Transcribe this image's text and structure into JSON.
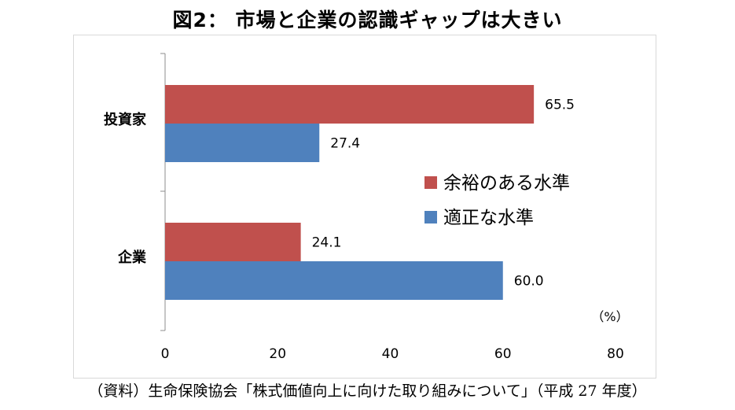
{
  "title": "図2： 市場と企業の認識ギャップは大きい",
  "source": "（資料）生命保険協会「株式価値向上に向けた取り組みについて」（平成 27 年度）",
  "colors": {
    "series1": "#c0504d",
    "series2": "#4f81bd"
  },
  "chart_data": {
    "type": "bar",
    "orientation": "horizontal",
    "categories": [
      "投資家",
      "企業"
    ],
    "series": [
      {
        "name": "余裕のある水準",
        "values": [
          65.5,
          24.1
        ]
      },
      {
        "name": "適正な水準",
        "values": [
          27.4,
          60.0
        ]
      }
    ],
    "value_labels": [
      [
        "65.5",
        "24.1"
      ],
      [
        "27.4",
        "60.0"
      ]
    ],
    "xlim": [
      0,
      80
    ],
    "xticks": [
      "0",
      "20",
      "40",
      "60",
      "80"
    ],
    "unit_label": "（%）",
    "legend_position": "right-center",
    "grid": false
  }
}
